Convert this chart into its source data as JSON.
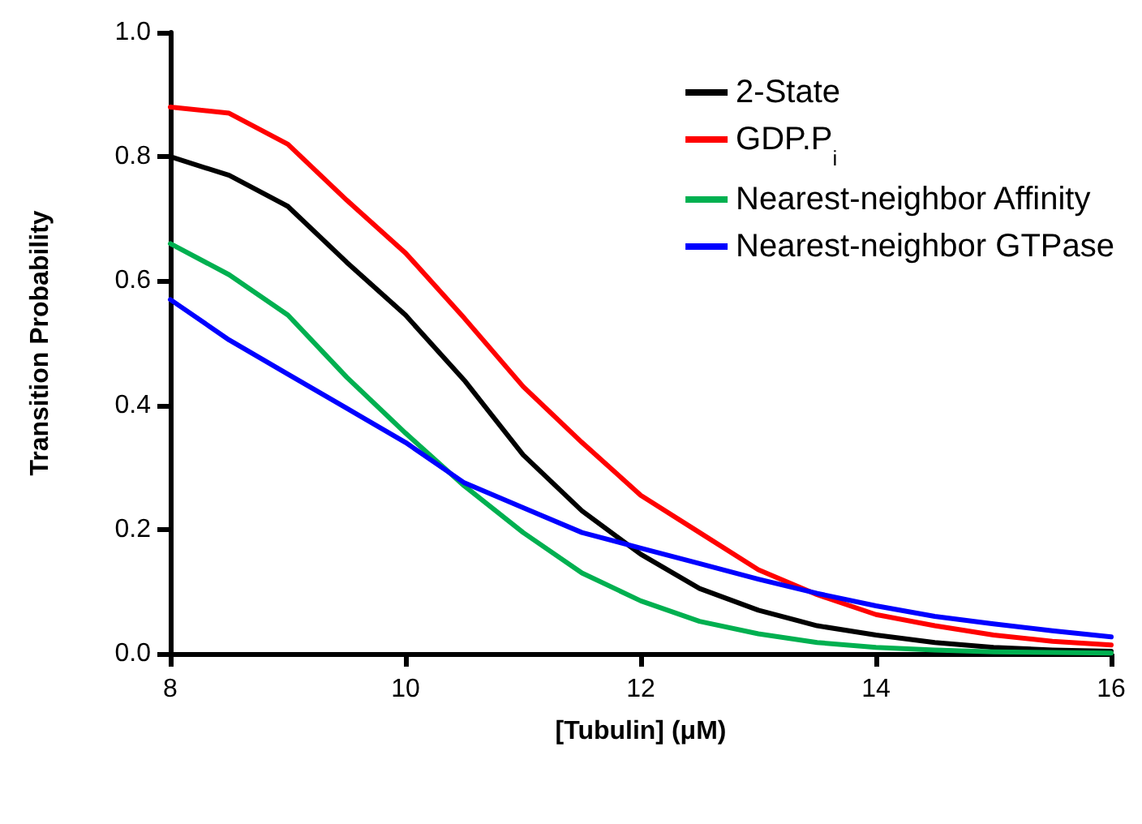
{
  "chart_data": {
    "type": "line",
    "xlabel": "[Tubulin] (μM)",
    "ylabel": "Transition Probability",
    "x": [
      8,
      8.5,
      9,
      9.5,
      10,
      10.5,
      11,
      11.5,
      12,
      12.5,
      13,
      13.5,
      14,
      14.5,
      15,
      15.5,
      16
    ],
    "series": [
      {
        "name": "2-State",
        "color": "#000000",
        "values": [
          0.8,
          0.77,
          0.72,
          0.63,
          0.545,
          0.44,
          0.32,
          0.23,
          0.16,
          0.105,
          0.07,
          0.045,
          0.03,
          0.018,
          0.01,
          0.006,
          0.004
        ]
      },
      {
        "name": "GDP.P$_{i}$",
        "color": "#ff0000",
        "values": [
          0.88,
          0.87,
          0.82,
          0.73,
          0.645,
          0.54,
          0.43,
          0.34,
          0.255,
          0.195,
          0.135,
          0.095,
          0.063,
          0.045,
          0.03,
          0.02,
          0.014
        ]
      },
      {
        "name": "Nearest-neighbor Affinity",
        "color": "#00b050",
        "values": [
          0.66,
          0.61,
          0.545,
          0.445,
          0.355,
          0.27,
          0.195,
          0.13,
          0.085,
          0.052,
          0.032,
          0.018,
          0.01,
          0.006,
          0.003,
          0.002,
          0.001
        ]
      },
      {
        "name": "Nearest-neighbor GTPase",
        "color": "#0000ff",
        "values": [
          0.57,
          0.505,
          0.45,
          0.395,
          0.34,
          0.275,
          0.235,
          0.195,
          0.17,
          0.145,
          0.12,
          0.097,
          0.077,
          0.06,
          0.048,
          0.037,
          0.027
        ]
      }
    ],
    "xlim": [
      8,
      16
    ],
    "xticks": [
      8,
      10,
      12,
      14,
      16
    ],
    "ylim": [
      0,
      1
    ],
    "yticks": [
      {
        "value": 0,
        "label": "0.0"
      },
      {
        "value": 0.2,
        "label": "0.2"
      },
      {
        "value": 0.4,
        "label": "0.4"
      },
      {
        "value": 0.6,
        "label": "0.6"
      },
      {
        "value": 0.8,
        "label": "0.8"
      },
      {
        "value": 1,
        "label": "1.0"
      }
    ],
    "grid": false,
    "legend": "top right",
    "marker": "none",
    "line_style": "solid"
  }
}
